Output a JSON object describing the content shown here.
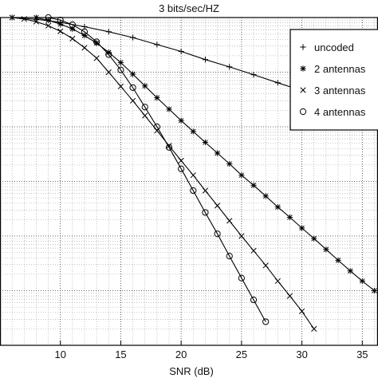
{
  "chart_data": {
    "type": "line",
    "title": "3 bits/sec/HZ",
    "xlabel": "SNR (dB)",
    "ylabel": "",
    "xlim": [
      5,
      36.3
    ],
    "ylog": true,
    "ylim": [
      1e-06,
      1
    ],
    "xticks": [
      10,
      15,
      20,
      25,
      30,
      35
    ],
    "grid": true,
    "legend_position": "top-right",
    "series": [
      {
        "name": "uncoded",
        "marker": "+",
        "x": [
          6,
          8,
          10,
          12,
          14,
          16,
          18,
          20,
          22,
          24,
          26,
          28,
          30,
          32,
          34,
          36
        ],
        "y": [
          1.0,
          0.93,
          0.82,
          0.68,
          0.55,
          0.43,
          0.32,
          0.24,
          0.17,
          0.125,
          0.09,
          0.064,
          0.046,
          0.033,
          0.024,
          0.017
        ]
      },
      {
        "name": "2 antennas",
        "marker": "*",
        "x": [
          8,
          9,
          10,
          11,
          12,
          13,
          14,
          15,
          16,
          17,
          18,
          19,
          20,
          21,
          22,
          23,
          24,
          25,
          26,
          27,
          28,
          29,
          30,
          31,
          32,
          33,
          34,
          35,
          36
        ],
        "y": [
          1.0,
          0.89,
          0.76,
          0.62,
          0.47,
          0.34,
          0.23,
          0.15,
          0.092,
          0.056,
          0.034,
          0.021,
          0.013,
          0.0082,
          0.0052,
          0.0033,
          0.0021,
          0.0013,
          0.00085,
          0.00054,
          0.00034,
          0.00022,
          0.00014,
          9e-05,
          5.7e-05,
          3.6e-05,
          2.3e-05,
          1.5e-05,
          1e-05
        ]
      },
      {
        "name": "3 antennas",
        "marker": "x",
        "x": [
          6,
          7,
          8,
          9,
          10,
          11,
          12,
          13,
          14,
          15,
          16,
          17,
          18,
          19,
          20,
          21,
          22,
          23,
          24,
          25,
          26,
          27,
          28,
          29,
          30,
          31
        ],
        "y": [
          1.0,
          0.94,
          0.84,
          0.71,
          0.56,
          0.41,
          0.28,
          0.18,
          0.1,
          0.055,
          0.03,
          0.016,
          0.0085,
          0.0045,
          0.0024,
          0.0013,
          0.00068,
          0.00036,
          0.00019,
          0.0001,
          5.4e-05,
          2.9e-05,
          1.5e-05,
          8e-06,
          4.2e-06,
          2e-06
        ]
      },
      {
        "name": "4 antennas",
        "marker": "o",
        "x": [
          9,
          10,
          11,
          12,
          13,
          14,
          15,
          16,
          17,
          18,
          19,
          20,
          21,
          22,
          23,
          24,
          25,
          26,
          27
        ],
        "y": [
          1.0,
          0.9,
          0.74,
          0.55,
          0.36,
          0.21,
          0.11,
          0.052,
          0.023,
          0.01,
          0.0042,
          0.0017,
          0.00068,
          0.00027,
          0.00011,
          4.3e-05,
          1.7e-05,
          6.8e-06,
          2.7e-06
        ]
      }
    ]
  }
}
